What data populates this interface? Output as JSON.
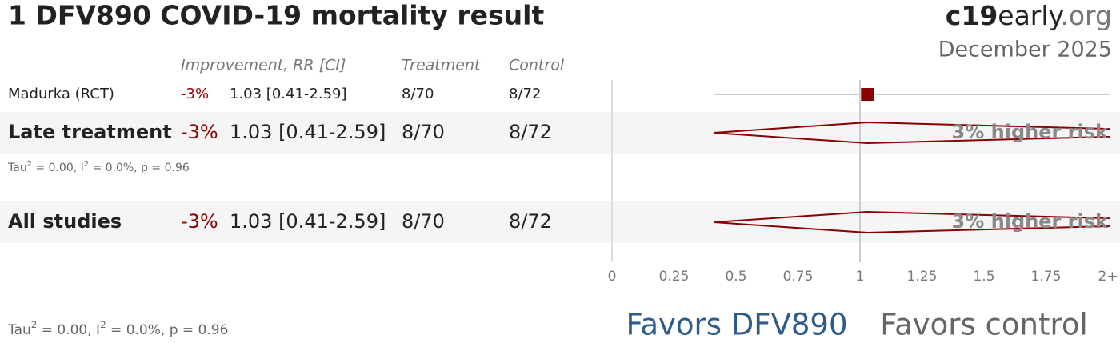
{
  "chart_data": {
    "type": "forest",
    "title": "1 DFV890 COVID-19 mortality result",
    "brand": [
      "c19",
      "early",
      ".org"
    ],
    "date": "December 2025",
    "columns": [
      "Improvement, RR [CI]",
      "Treatment",
      "Control"
    ],
    "rows": [
      {
        "label": "Madurka (RCT)",
        "kind": "study",
        "improvement": "-3%",
        "rr": 1.03,
        "ci": [
          0.41,
          2.59
        ],
        "rr_label": "1.03 [0.41-2.59]",
        "treatment": "8/70",
        "control": "8/72"
      },
      {
        "label": "Late treatment",
        "kind": "summary",
        "improvement": "-3%",
        "rr": 1.03,
        "ci": [
          0.41,
          2.59
        ],
        "rr_label": "1.03 [0.41-2.59]",
        "treatment": "8/70",
        "control": "8/72",
        "annotation": "3% higher risk",
        "heterogeneity": [
          {
            "text": "Tau"
          },
          {
            "text": "2",
            "sup": true
          },
          {
            "text": " = 0.00, I"
          },
          {
            "text": "2",
            "sup": true
          },
          {
            "text": " = 0.0%, p = 0.96"
          }
        ]
      },
      {
        "label": "All studies",
        "kind": "summary",
        "improvement": "-3%",
        "rr": 1.03,
        "ci": [
          0.41,
          2.59
        ],
        "rr_label": "1.03 [0.41-2.59]",
        "treatment": "8/70",
        "control": "8/72",
        "annotation": "3% higher risk"
      }
    ],
    "heterogeneity": [
      {
        "text": "Tau"
      },
      {
        "text": "2",
        "sup": true
      },
      {
        "text": " = 0.00, I"
      },
      {
        "text": "2",
        "sup": true
      },
      {
        "text": " = 0.0%, p = 0.96"
      }
    ],
    "xlim": [
      0,
      2
    ],
    "xticks": [
      0,
      0.25,
      0.5,
      0.75,
      1,
      1.25,
      1.5,
      1.75,
      {
        "value": 2,
        "label": "2+"
      }
    ],
    "favors": [
      "Favors DFV890",
      "Favors control"
    ],
    "color": "#8b0000"
  }
}
